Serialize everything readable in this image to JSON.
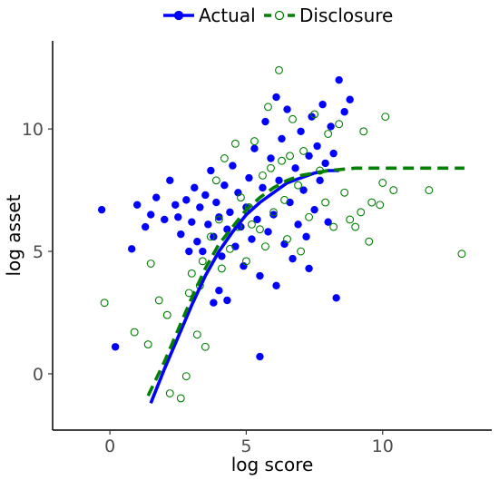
{
  "chart_data": {
    "type": "scatter",
    "xlabel": "log score",
    "ylabel": "log asset",
    "xlim": [
      -2.1,
      14.0
    ],
    "ylim": [
      -2.3,
      13.6
    ],
    "xticks": [
      0,
      5,
      10
    ],
    "yticks": [
      0,
      5,
      10
    ],
    "grid": false,
    "legend_position": "top",
    "series": [
      {
        "name": "Actual",
        "color": "#0000ff",
        "marker": "filled-circle",
        "points": [
          [
            -0.3,
            6.7
          ],
          [
            0.2,
            1.1
          ],
          [
            0.8,
            5.1
          ],
          [
            1.0,
            6.9
          ],
          [
            1.3,
            6.0
          ],
          [
            1.5,
            6.5
          ],
          [
            1.7,
            7.2
          ],
          [
            2.0,
            6.3
          ],
          [
            2.2,
            7.9
          ],
          [
            2.4,
            6.9
          ],
          [
            2.5,
            6.4
          ],
          [
            2.6,
            5.7
          ],
          [
            2.8,
            7.1
          ],
          [
            3.0,
            6.2
          ],
          [
            3.1,
            7.6
          ],
          [
            3.2,
            5.4
          ],
          [
            3.3,
            6.8
          ],
          [
            3.4,
            5.0
          ],
          [
            3.5,
            7.3
          ],
          [
            3.6,
            6.1
          ],
          [
            3.7,
            8.3
          ],
          [
            3.8,
            5.6
          ],
          [
            3.9,
            7.0
          ],
          [
            4.0,
            6.4
          ],
          [
            4.1,
            4.8
          ],
          [
            4.2,
            7.7
          ],
          [
            4.3,
            5.9
          ],
          [
            4.4,
            6.6
          ],
          [
            4.5,
            8.5
          ],
          [
            4.6,
            5.2
          ],
          [
            4.7,
            7.4
          ],
          [
            4.8,
            6.0
          ],
          [
            4.9,
            4.4
          ],
          [
            5.0,
            6.8
          ],
          [
            5.1,
            8.0
          ],
          [
            5.2,
            5.5
          ],
          [
            5.3,
            9.2
          ],
          [
            5.4,
            6.3
          ],
          [
            5.5,
            4.0
          ],
          [
            5.6,
            7.6
          ],
          [
            5.7,
            10.3
          ],
          [
            5.8,
            5.8
          ],
          [
            5.9,
            8.8
          ],
          [
            6.0,
            6.5
          ],
          [
            6.1,
            3.6
          ],
          [
            6.2,
            7.9
          ],
          [
            6.3,
            9.6
          ],
          [
            6.4,
            5.3
          ],
          [
            6.5,
            10.8
          ],
          [
            6.6,
            7.0
          ],
          [
            6.7,
            4.7
          ],
          [
            6.8,
            8.4
          ],
          [
            6.9,
            6.1
          ],
          [
            7.0,
            9.9
          ],
          [
            7.1,
            7.5
          ],
          [
            7.2,
            5.6
          ],
          [
            7.3,
            8.9
          ],
          [
            7.4,
            10.5
          ],
          [
            7.5,
            6.7
          ],
          [
            7.6,
            9.3
          ],
          [
            7.7,
            7.9
          ],
          [
            7.8,
            11.0
          ],
          [
            7.9,
            8.6
          ],
          [
            8.0,
            6.2
          ],
          [
            8.1,
            10.1
          ],
          [
            8.2,
            9.0
          ],
          [
            8.3,
            3.1
          ],
          [
            8.4,
            12.0
          ],
          [
            8.6,
            10.7
          ],
          [
            8.8,
            11.2
          ],
          [
            5.5,
            0.7
          ],
          [
            4.0,
            3.4
          ],
          [
            3.8,
            2.9
          ],
          [
            4.3,
            3.0
          ],
          [
            2.9,
            5.0
          ],
          [
            6.1,
            11.3
          ],
          [
            7.3,
            4.3
          ]
        ]
      },
      {
        "name": "Disclosure",
        "color": "#008000",
        "marker": "open-circle",
        "points": [
          [
            -0.2,
            2.9
          ],
          [
            0.9,
            1.7
          ],
          [
            1.4,
            1.2
          ],
          [
            1.5,
            4.5
          ],
          [
            1.8,
            3.0
          ],
          [
            2.1,
            2.4
          ],
          [
            2.2,
            -0.8
          ],
          [
            2.6,
            -1.0
          ],
          [
            2.8,
            -0.1
          ],
          [
            2.9,
            3.3
          ],
          [
            3.0,
            4.1
          ],
          [
            3.2,
            1.6
          ],
          [
            3.4,
            4.6
          ],
          [
            3.5,
            1.1
          ],
          [
            3.7,
            5.6
          ],
          [
            3.9,
            7.9
          ],
          [
            4.0,
            6.3
          ],
          [
            4.2,
            8.8
          ],
          [
            4.4,
            5.1
          ],
          [
            4.6,
            9.4
          ],
          [
            4.8,
            7.2
          ],
          [
            5.0,
            4.6
          ],
          [
            5.1,
            6.8
          ],
          [
            5.3,
            9.5
          ],
          [
            5.5,
            5.9
          ],
          [
            5.6,
            8.1
          ],
          [
            5.8,
            10.9
          ],
          [
            6.0,
            6.6
          ],
          [
            6.2,
            12.4
          ],
          [
            6.3,
            8.7
          ],
          [
            6.5,
            5.5
          ],
          [
            6.7,
            10.4
          ],
          [
            6.9,
            7.7
          ],
          [
            7.1,
            9.1
          ],
          [
            7.3,
            6.4
          ],
          [
            7.5,
            10.6
          ],
          [
            7.7,
            8.3
          ],
          [
            7.9,
            7.0
          ],
          [
            8.0,
            9.8
          ],
          [
            8.2,
            6.0
          ],
          [
            8.4,
            10.2
          ],
          [
            8.6,
            7.4
          ],
          [
            8.8,
            6.3
          ],
          [
            9.0,
            6.0
          ],
          [
            9.2,
            6.6
          ],
          [
            9.3,
            9.9
          ],
          [
            9.5,
            5.4
          ],
          [
            9.6,
            7.0
          ],
          [
            9.9,
            6.9
          ],
          [
            10.0,
            7.8
          ],
          [
            10.1,
            10.5
          ],
          [
            10.4,
            7.5
          ],
          [
            11.7,
            7.5
          ],
          [
            12.9,
            4.9
          ],
          [
            5.2,
            6.1
          ],
          [
            5.7,
            5.2
          ],
          [
            4.7,
            6.0
          ],
          [
            6.4,
            7.1
          ],
          [
            5.9,
            8.4
          ],
          [
            4.1,
            4.3
          ],
          [
            3.3,
            3.6
          ],
          [
            7.0,
            5.0
          ],
          [
            6.6,
            8.9
          ]
        ]
      }
    ],
    "fits": [
      {
        "name": "Actual",
        "color": "#0000ff",
        "dash": "solid",
        "points": [
          [
            1.5,
            -1.2
          ],
          [
            2.0,
            0.2
          ],
          [
            2.5,
            1.5
          ],
          [
            3.0,
            2.8
          ],
          [
            3.5,
            4.0
          ],
          [
            4.0,
            5.0
          ],
          [
            4.5,
            5.8
          ],
          [
            5.0,
            6.5
          ],
          [
            5.5,
            7.0
          ],
          [
            6.0,
            7.4
          ],
          [
            6.5,
            7.8
          ],
          [
            7.0,
            8.0
          ],
          [
            7.5,
            8.2
          ],
          [
            8.0,
            8.3
          ],
          [
            8.4,
            8.3
          ]
        ]
      },
      {
        "name": "Disclosure",
        "color": "#008000",
        "dash": "dashed",
        "points": [
          [
            1.4,
            -0.9
          ],
          [
            2.0,
            0.5
          ],
          [
            2.5,
            1.8
          ],
          [
            3.0,
            3.1
          ],
          [
            3.5,
            4.3
          ],
          [
            4.0,
            5.3
          ],
          [
            4.5,
            6.0
          ],
          [
            5.0,
            6.7
          ],
          [
            5.5,
            7.2
          ],
          [
            6.0,
            7.6
          ],
          [
            6.5,
            7.9
          ],
          [
            7.0,
            8.1
          ],
          [
            8.0,
            8.3
          ],
          [
            9.0,
            8.4
          ],
          [
            10.0,
            8.4
          ],
          [
            11.0,
            8.4
          ],
          [
            12.0,
            8.4
          ],
          [
            13.0,
            8.4
          ]
        ]
      }
    ]
  }
}
